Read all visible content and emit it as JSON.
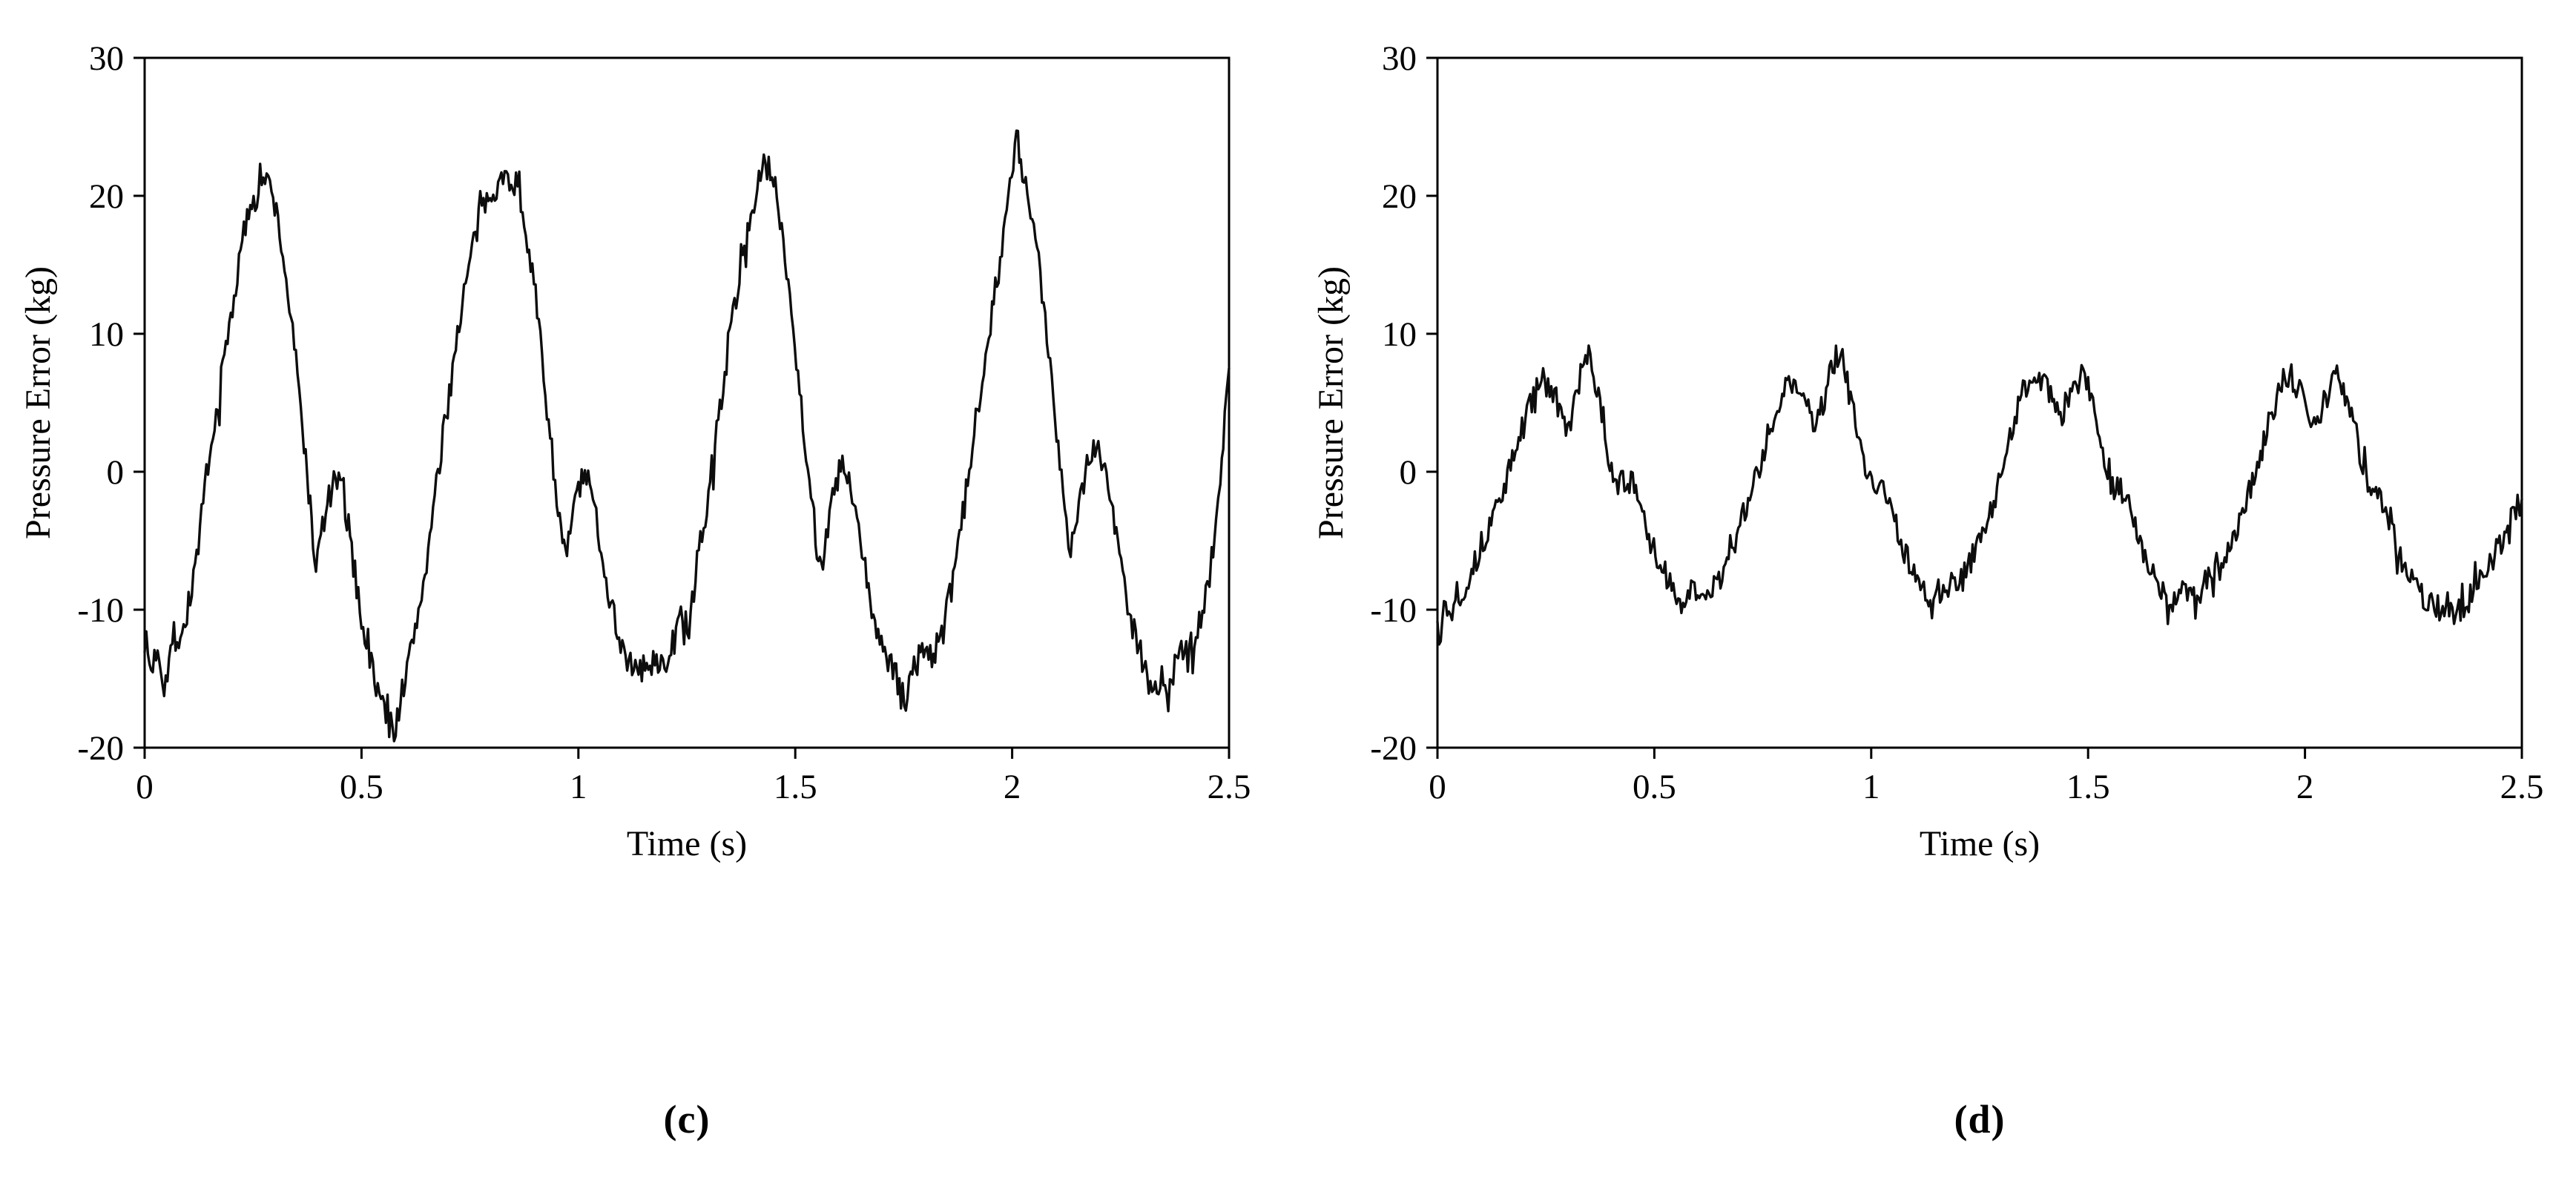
{
  "figure": {
    "background": "#ffffff",
    "line_color": "#0d0d0d",
    "axis_color": "#000000"
  },
  "chart_data": [
    {
      "type": "line",
      "panel": "c",
      "caption": "(c)",
      "title": "",
      "xlabel": "Time (s)",
      "ylabel": "Pressure Error (kg)",
      "xlim": [
        0,
        2.5
      ],
      "ylim": [
        -20,
        30
      ],
      "xticks": [
        0,
        0.5,
        1,
        1.5,
        2,
        2.5
      ],
      "xtick_labels": [
        "0",
        "0.5",
        "1",
        "1.5",
        "2",
        "2.5"
      ],
      "yticks": [
        -20,
        -10,
        0,
        10,
        20,
        30
      ],
      "ytick_labels": [
        "-20",
        "-10",
        "0",
        "10",
        "20",
        "30"
      ],
      "grid": false,
      "legend": null,
      "line_color": "#0d0d0d",
      "noise_amplitude": 1.1,
      "seed": 7,
      "sample_dt": 0.004,
      "points": [
        [
          0.0,
          -12.0
        ],
        [
          0.015,
          -14.5
        ],
        [
          0.03,
          -12.5
        ],
        [
          0.045,
          -15.5
        ],
        [
          0.06,
          -13.0
        ],
        [
          0.075,
          -12.0
        ],
        [
          0.09,
          -11.5
        ],
        [
          0.105,
          -9.0
        ],
        [
          0.12,
          -6.0
        ],
        [
          0.135,
          -2.5
        ],
        [
          0.15,
          0.5
        ],
        [
          0.165,
          4.0
        ],
        [
          0.18,
          7.5
        ],
        [
          0.195,
          10.5
        ],
        [
          0.21,
          13.5
        ],
        [
          0.225,
          16.5
        ],
        [
          0.24,
          19.0
        ],
        [
          0.255,
          20.5
        ],
        [
          0.27,
          21.5
        ],
        [
          0.285,
          20.8
        ],
        [
          0.3,
          19.5
        ],
        [
          0.315,
          16.5
        ],
        [
          0.33,
          13.0
        ],
        [
          0.345,
          9.0
        ],
        [
          0.36,
          4.5
        ],
        [
          0.375,
          0.0
        ],
        [
          0.385,
          -4.0
        ],
        [
          0.395,
          -7.0
        ],
        [
          0.41,
          -4.0
        ],
        [
          0.425,
          -2.0
        ],
        [
          0.44,
          -0.5
        ],
        [
          0.455,
          -1.5
        ],
        [
          0.47,
          -4.0
        ],
        [
          0.485,
          -7.5
        ],
        [
          0.5,
          -10.5
        ],
        [
          0.515,
          -13.0
        ],
        [
          0.53,
          -15.0
        ],
        [
          0.545,
          -16.5
        ],
        [
          0.56,
          -18.0
        ],
        [
          0.575,
          -18.8
        ],
        [
          0.59,
          -16.5
        ],
        [
          0.605,
          -14.5
        ],
        [
          0.62,
          -12.0
        ],
        [
          0.635,
          -9.5
        ],
        [
          0.65,
          -6.5
        ],
        [
          0.665,
          -3.0
        ],
        [
          0.68,
          0.5
        ],
        [
          0.695,
          4.0
        ],
        [
          0.71,
          7.5
        ],
        [
          0.725,
          11.0
        ],
        [
          0.74,
          13.5
        ],
        [
          0.755,
          16.0
        ],
        [
          0.77,
          18.0
        ],
        [
          0.785,
          19.5
        ],
        [
          0.8,
          20.5
        ],
        [
          0.815,
          21.0
        ],
        [
          0.83,
          21.2
        ],
        [
          0.845,
          21.4
        ],
        [
          0.86,
          20.5
        ],
        [
          0.875,
          18.5
        ],
        [
          0.89,
          15.5
        ],
        [
          0.905,
          11.5
        ],
        [
          0.92,
          7.0
        ],
        [
          0.935,
          2.5
        ],
        [
          0.95,
          -1.5
        ],
        [
          0.96,
          -4.5
        ],
        [
          0.97,
          -6.5
        ],
        [
          0.985,
          -3.5
        ],
        [
          1.0,
          -1.0
        ],
        [
          1.015,
          -0.5
        ],
        [
          1.03,
          -1.5
        ],
        [
          1.045,
          -4.0
        ],
        [
          1.06,
          -7.0
        ],
        [
          1.075,
          -9.5
        ],
        [
          1.09,
          -11.5
        ],
        [
          1.105,
          -13.0
        ],
        [
          1.12,
          -14.0
        ],
        [
          1.135,
          -14.8
        ],
        [
          1.15,
          -14.0
        ],
        [
          1.165,
          -14.5
        ],
        [
          1.18,
          -13.5
        ],
        [
          1.195,
          -14.2
        ],
        [
          1.21,
          -13.0
        ],
        [
          1.225,
          -12.0
        ],
        [
          1.24,
          -10.0
        ],
        [
          1.255,
          -11.5
        ],
        [
          1.27,
          -8.0
        ],
        [
          1.285,
          -5.0
        ],
        [
          1.3,
          -1.5
        ],
        [
          1.315,
          2.0
        ],
        [
          1.33,
          5.5
        ],
        [
          1.345,
          9.0
        ],
        [
          1.36,
          12.0
        ],
        [
          1.375,
          15.0
        ],
        [
          1.39,
          17.5
        ],
        [
          1.405,
          19.5
        ],
        [
          1.42,
          21.5
        ],
        [
          1.435,
          22.3
        ],
        [
          1.45,
          21.0
        ],
        [
          1.465,
          18.5
        ],
        [
          1.48,
          15.0
        ],
        [
          1.495,
          10.5
        ],
        [
          1.51,
          6.0
        ],
        [
          1.525,
          1.5
        ],
        [
          1.54,
          -2.5
        ],
        [
          1.55,
          -5.5
        ],
        [
          1.56,
          -6.8
        ],
        [
          1.575,
          -4.0
        ],
        [
          1.59,
          -1.5
        ],
        [
          1.605,
          0.5
        ],
        [
          1.62,
          -0.5
        ],
        [
          1.635,
          -2.5
        ],
        [
          1.65,
          -5.0
        ],
        [
          1.665,
          -8.0
        ],
        [
          1.68,
          -10.5
        ],
        [
          1.695,
          -12.0
        ],
        [
          1.71,
          -13.5
        ],
        [
          1.725,
          -14.5
        ],
        [
          1.74,
          -15.5
        ],
        [
          1.755,
          -16.5
        ],
        [
          1.77,
          -14.5
        ],
        [
          1.785,
          -13.5
        ],
        [
          1.8,
          -12.5
        ],
        [
          1.815,
          -13.5
        ],
        [
          1.83,
          -12.5
        ],
        [
          1.845,
          -11.0
        ],
        [
          1.86,
          -8.5
        ],
        [
          1.875,
          -5.5
        ],
        [
          1.89,
          -2.5
        ],
        [
          1.905,
          1.0
        ],
        [
          1.92,
          4.5
        ],
        [
          1.935,
          8.0
        ],
        [
          1.95,
          11.0
        ],
        [
          1.965,
          14.0
        ],
        [
          1.98,
          17.0
        ],
        [
          1.995,
          20.5
        ],
        [
          2.01,
          24.5
        ],
        [
          2.02,
          22.0
        ],
        [
          2.035,
          20.0
        ],
        [
          2.05,
          17.5
        ],
        [
          2.065,
          14.0
        ],
        [
          2.08,
          10.0
        ],
        [
          2.095,
          5.5
        ],
        [
          2.11,
          1.0
        ],
        [
          2.125,
          -3.0
        ],
        [
          2.135,
          -6.0
        ],
        [
          2.15,
          -3.0
        ],
        [
          2.165,
          -0.5
        ],
        [
          2.18,
          1.5
        ],
        [
          2.195,
          2.0
        ],
        [
          2.21,
          0.5
        ],
        [
          2.225,
          -1.5
        ],
        [
          2.24,
          -4.5
        ],
        [
          2.255,
          -7.5
        ],
        [
          2.27,
          -10.0
        ],
        [
          2.285,
          -12.0
        ],
        [
          2.3,
          -13.5
        ],
        [
          2.315,
          -15.0
        ],
        [
          2.33,
          -16.0
        ],
        [
          2.345,
          -15.0
        ],
        [
          2.36,
          -16.5
        ],
        [
          2.375,
          -14.0
        ],
        [
          2.39,
          -13.0
        ],
        [
          2.405,
          -13.5
        ],
        [
          2.42,
          -12.0
        ],
        [
          2.435,
          -10.5
        ],
        [
          2.45,
          -8.5
        ],
        [
          2.46,
          -6.0
        ],
        [
          2.47,
          -3.5
        ],
        [
          2.48,
          -0.5
        ],
        [
          2.49,
          3.5
        ],
        [
          2.5,
          7.5
        ]
      ]
    },
    {
      "type": "line",
      "panel": "d",
      "caption": "(d)",
      "title": "",
      "xlabel": "Time (s)",
      "ylabel": "Pressure Error (kg)",
      "xlim": [
        0,
        2.5
      ],
      "ylim": [
        -20,
        30
      ],
      "xticks": [
        0,
        0.5,
        1,
        1.5,
        2,
        2.5
      ],
      "xtick_labels": [
        "0",
        "0.5",
        "1",
        "1.5",
        "2",
        "2.5"
      ],
      "yticks": [
        -20,
        -10,
        0,
        10,
        20,
        30
      ],
      "ytick_labels": [
        "-20",
        "-10",
        "0",
        "10",
        "20",
        "30"
      ],
      "grid": false,
      "legend": null,
      "line_color": "#0d0d0d",
      "noise_amplitude": 1.0,
      "seed": 13,
      "sample_dt": 0.004,
      "points": [
        [
          0.0,
          -11.0
        ],
        [
          0.015,
          -9.5
        ],
        [
          0.03,
          -10.5
        ],
        [
          0.045,
          -8.5
        ],
        [
          0.06,
          -9.0
        ],
        [
          0.075,
          -7.0
        ],
        [
          0.09,
          -6.5
        ],
        [
          0.105,
          -5.0
        ],
        [
          0.12,
          -4.0
        ],
        [
          0.135,
          -2.5
        ],
        [
          0.15,
          -1.5
        ],
        [
          0.165,
          0.0
        ],
        [
          0.18,
          1.5
        ],
        [
          0.195,
          3.0
        ],
        [
          0.21,
          4.5
        ],
        [
          0.225,
          6.0
        ],
        [
          0.24,
          6.6
        ],
        [
          0.255,
          6.4
        ],
        [
          0.27,
          5.5
        ],
        [
          0.285,
          4.0
        ],
        [
          0.3,
          3.0
        ],
        [
          0.315,
          4.5
        ],
        [
          0.33,
          7.0
        ],
        [
          0.345,
          8.6
        ],
        [
          0.36,
          7.0
        ],
        [
          0.375,
          4.5
        ],
        [
          0.39,
          2.0
        ],
        [
          0.405,
          0.0
        ],
        [
          0.42,
          -1.0
        ],
        [
          0.435,
          -0.5
        ],
        [
          0.45,
          -1.0
        ],
        [
          0.465,
          -2.5
        ],
        [
          0.48,
          -4.0
        ],
        [
          0.495,
          -5.5
        ],
        [
          0.51,
          -6.5
        ],
        [
          0.525,
          -7.5
        ],
        [
          0.54,
          -8.5
        ],
        [
          0.555,
          -9.0
        ],
        [
          0.57,
          -9.5
        ],
        [
          0.585,
          -8.5
        ],
        [
          0.6,
          -9.5
        ],
        [
          0.615,
          -8.5
        ],
        [
          0.63,
          -9.0
        ],
        [
          0.645,
          -8.0
        ],
        [
          0.66,
          -7.0
        ],
        [
          0.675,
          -6.0
        ],
        [
          0.69,
          -4.5
        ],
        [
          0.705,
          -3.0
        ],
        [
          0.72,
          -2.0
        ],
        [
          0.735,
          -0.5
        ],
        [
          0.75,
          1.0
        ],
        [
          0.765,
          3.0
        ],
        [
          0.78,
          4.5
        ],
        [
          0.795,
          6.0
        ],
        [
          0.81,
          6.5
        ],
        [
          0.825,
          6.3
        ],
        [
          0.84,
          5.5
        ],
        [
          0.855,
          4.0
        ],
        [
          0.87,
          3.2
        ],
        [
          0.885,
          4.5
        ],
        [
          0.9,
          6.5
        ],
        [
          0.915,
          8.0
        ],
        [
          0.93,
          8.8
        ],
        [
          0.945,
          6.5
        ],
        [
          0.96,
          4.0
        ],
        [
          0.975,
          1.5
        ],
        [
          0.99,
          -0.5
        ],
        [
          1.005,
          -1.0
        ],
        [
          1.02,
          -0.8
        ],
        [
          1.035,
          -1.5
        ],
        [
          1.05,
          -3.0
        ],
        [
          1.065,
          -4.5
        ],
        [
          1.08,
          -6.0
        ],
        [
          1.095,
          -7.0
        ],
        [
          1.11,
          -8.0
        ],
        [
          1.125,
          -8.8
        ],
        [
          1.14,
          -10.5
        ],
        [
          1.155,
          -8.5
        ],
        [
          1.17,
          -9.0
        ],
        [
          1.185,
          -8.0
        ],
        [
          1.2,
          -8.5
        ],
        [
          1.215,
          -7.5
        ],
        [
          1.23,
          -6.5
        ],
        [
          1.245,
          -5.5
        ],
        [
          1.26,
          -4.5
        ],
        [
          1.275,
          -3.0
        ],
        [
          1.29,
          -1.5
        ],
        [
          1.305,
          0.5
        ],
        [
          1.32,
          2.5
        ],
        [
          1.335,
          4.5
        ],
        [
          1.35,
          6.0
        ],
        [
          1.365,
          6.8
        ],
        [
          1.38,
          6.5
        ],
        [
          1.395,
          6.8
        ],
        [
          1.41,
          6.0
        ],
        [
          1.425,
          4.5
        ],
        [
          1.44,
          3.8
        ],
        [
          1.455,
          5.0
        ],
        [
          1.47,
          6.5
        ],
        [
          1.485,
          6.8
        ],
        [
          1.5,
          6.0
        ],
        [
          1.515,
          4.0
        ],
        [
          1.53,
          1.5
        ],
        [
          1.545,
          -0.5
        ],
        [
          1.56,
          -1.5
        ],
        [
          1.575,
          -1.0
        ],
        [
          1.59,
          -2.0
        ],
        [
          1.605,
          -3.5
        ],
        [
          1.62,
          -5.0
        ],
        [
          1.635,
          -6.5
        ],
        [
          1.65,
          -7.5
        ],
        [
          1.665,
          -8.5
        ],
        [
          1.68,
          -9.0
        ],
        [
          1.695,
          -9.5
        ],
        [
          1.71,
          -9.0
        ],
        [
          1.725,
          -8.5
        ],
        [
          1.74,
          -9.5
        ],
        [
          1.755,
          -9.0
        ],
        [
          1.77,
          -8.0
        ],
        [
          1.785,
          -7.5
        ],
        [
          1.8,
          -6.5
        ],
        [
          1.815,
          -6.0
        ],
        [
          1.83,
          -5.0
        ],
        [
          1.845,
          -4.0
        ],
        [
          1.86,
          -2.5
        ],
        [
          1.875,
          -1.0
        ],
        [
          1.89,
          0.5
        ],
        [
          1.905,
          2.0
        ],
        [
          1.92,
          4.0
        ],
        [
          1.935,
          5.5
        ],
        [
          1.95,
          6.5
        ],
        [
          1.965,
          7.0
        ],
        [
          1.98,
          6.5
        ],
        [
          1.995,
          5.5
        ],
        [
          2.01,
          4.0
        ],
        [
          2.025,
          3.5
        ],
        [
          2.04,
          4.5
        ],
        [
          2.055,
          6.0
        ],
        [
          2.07,
          7.0
        ],
        [
          2.085,
          6.5
        ],
        [
          2.1,
          5.0
        ],
        [
          2.115,
          3.0
        ],
        [
          2.13,
          1.0
        ],
        [
          2.145,
          -0.5
        ],
        [
          2.16,
          -1.0
        ],
        [
          2.175,
          -2.0
        ],
        [
          2.19,
          -3.0
        ],
        [
          2.205,
          -4.5
        ],
        [
          2.22,
          -6.0
        ],
        [
          2.235,
          -7.0
        ],
        [
          2.25,
          -8.0
        ],
        [
          2.265,
          -9.0
        ],
        [
          2.28,
          -9.5
        ],
        [
          2.295,
          -9.0
        ],
        [
          2.31,
          -10.0
        ],
        [
          2.325,
          -9.5
        ],
        [
          2.34,
          -10.5
        ],
        [
          2.355,
          -10.0
        ],
        [
          2.37,
          -9.5
        ],
        [
          2.385,
          -9.0
        ],
        [
          2.4,
          -8.0
        ],
        [
          2.415,
          -7.5
        ],
        [
          2.43,
          -6.5
        ],
        [
          2.445,
          -5.5
        ],
        [
          2.46,
          -4.5
        ],
        [
          2.475,
          -3.5
        ],
        [
          2.49,
          -2.5
        ],
        [
          2.5,
          -2.0
        ]
      ]
    }
  ]
}
